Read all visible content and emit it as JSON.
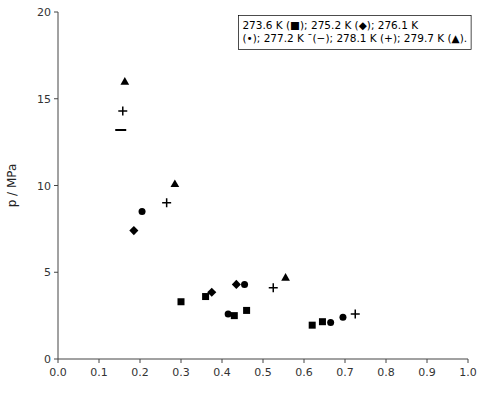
{
  "chart_data": {
    "type": "scatter",
    "ylabel": "p / MPa",
    "annotations": [
      "273.6 K (■); 275.2 K (◆); 276.1 K",
      "(•); 277.2 K ¯(−); 278.1 K (+); 279.7 K (▲)."
    ],
    "xlim": [
      0,
      1
    ],
    "ylim": [
      0,
      20
    ],
    "xticks": [
      {
        "value": 0,
        "label": "0.0"
      },
      0.1,
      0.2,
      0.3,
      0.4,
      0.5,
      0.6,
      0.7,
      0.8,
      0.9,
      {
        "value": 1,
        "label": "1.0"
      }
    ],
    "yticks": [
      0,
      5,
      10,
      15,
      20
    ],
    "grid": false,
    "series": [
      {
        "marker": "square",
        "color": "black",
        "x": [
          0.3,
          0.36,
          0.43,
          0.46,
          0.62,
          0.645
        ],
        "values": [
          3.3,
          3.6,
          2.5,
          2.8,
          1.95,
          2.15
        ]
      },
      {
        "marker": "diamond",
        "color": "black",
        "x": [
          0.185,
          0.375,
          0.435
        ],
        "values": [
          7.4,
          3.85,
          4.3
        ]
      },
      {
        "marker": "circle",
        "color": "black",
        "x": [
          0.205,
          0.415,
          0.455,
          0.665,
          0.695
        ],
        "values": [
          8.5,
          2.6,
          4.3,
          2.1,
          2.4
        ]
      },
      {
        "marker": "dash",
        "color": "black",
        "x": [
          0.153
        ],
        "values": [
          13.2
        ]
      },
      {
        "marker": "plus",
        "color": "black",
        "x": [
          0.158,
          0.265,
          0.525,
          0.725
        ],
        "values": [
          14.3,
          9.0,
          4.1,
          2.6
        ]
      },
      {
        "marker": "triangle",
        "color": "black",
        "x": [
          0.163,
          0.285,
          0.555
        ],
        "values": [
          16.0,
          10.1,
          4.7
        ]
      }
    ]
  }
}
